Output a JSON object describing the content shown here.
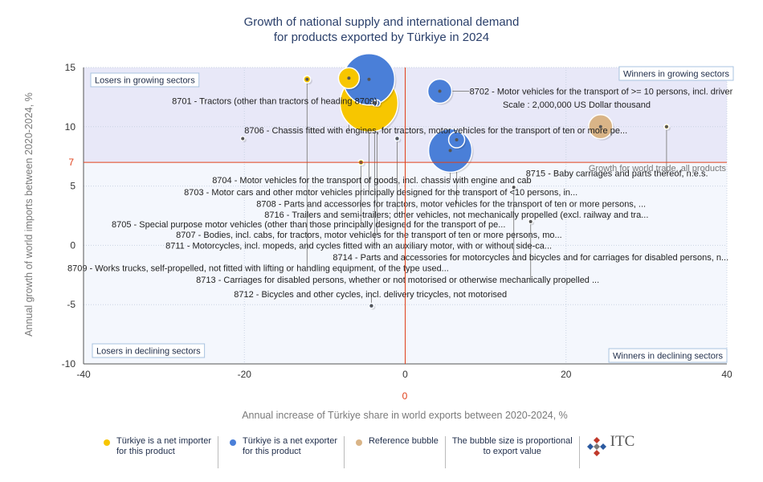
{
  "colors": {
    "importer": "#f7c600",
    "exporter": "#4a7fd8",
    "reference": "#d9b487",
    "upper_band": "#e8e8f8",
    "lower_band": "#f4f7fd",
    "crosshair": "#e0401a",
    "title": "#2a3f6a"
  },
  "chart_data": {
    "type": "scatter",
    "title_lines": [
      "Growth of national supply and international demand",
      "for products exported by Türkiye in 2024"
    ],
    "xlabel": "Annual increase of Türkiye share in world exports between 2020-2024, %",
    "ylabel": "Annual growth of world imports between 2020-2024, %",
    "xlim": [
      -40,
      40
    ],
    "ylim": [
      -10,
      15
    ],
    "xticks": [
      -40,
      -20,
      0,
      20,
      40
    ],
    "yticks": [
      -10,
      -5,
      0,
      5,
      10,
      15
    ],
    "x_ref_label": "0",
    "y_ref_label": "7",
    "y_ref": 7,
    "world_trade_label": "Growth for world trade, all products",
    "scale_label": "Scale : 2,000,000 US Dollar thousand",
    "quadrants": {
      "top_left": "Losers in growing sectors",
      "top_right": "Winners in growing sectors",
      "bottom_left": "Losers in declining sectors",
      "bottom_right": "Winners in declining sectors"
    },
    "points": [
      {
        "code": "8701",
        "label": "8701 - Tractors (other than tractors of heading 8709)",
        "x": -4.5,
        "y": 12.0,
        "r": 36,
        "type": "importer",
        "lx": -29,
        "ly": 12.2
      },
      {
        "code": "8702",
        "label": "8702 - Motor vehicles for the transport of >= 10 persons, incl. driver",
        "x": 4.3,
        "y": 13.0,
        "r": 15,
        "type": "exporter",
        "lx": 8,
        "ly": 13.0
      },
      {
        "code": "8703",
        "label": "8703 - Motor cars and other motor vehicles principally designed for the transport of <10 persons, in...",
        "x": -4.5,
        "y": 14.0,
        "r": 32,
        "type": "exporter",
        "lx": -27.5,
        "ly": 4.5
      },
      {
        "code": "8704",
        "label": "8704 - Motor vehicles for the transport of goods, incl. chassis with engine and cab",
        "x": 5.6,
        "y": 8.0,
        "r": 27,
        "type": "exporter",
        "lx": -24,
        "ly": 5.5
      },
      {
        "code": "8705",
        "label": "8705 - Special purpose motor vehicles (other than those principally designed for the transport of pe...",
        "x": -5.5,
        "y": 7.0,
        "r": 3.5,
        "type": "importer",
        "lx": -36.5,
        "ly": 1.8
      },
      {
        "code": "8706",
        "label": "8706 - Chassis fitted with engines, for tractors, motor vehicles for the transport of ten or more pe...",
        "x": -7.0,
        "y": 14.1,
        "r": 13,
        "type": "importer",
        "lx": -20,
        "ly": 9.7
      },
      {
        "code": "8707",
        "label": "8707 - Bodies, incl. cabs, for tractors, motor vehicles for the transport of ten or more persons, mo...",
        "x": -3.5,
        "y": 12.0,
        "r": 4,
        "type": "exporter",
        "lx": -28.5,
        "ly": 0.9
      },
      {
        "code": "8708",
        "label": "8708 - Parts and accessories for tractors, motor vehicles for the transport of ten or more persons, ...",
        "x": 6.4,
        "y": 8.9,
        "r": 10,
        "type": "exporter",
        "lx": -18.5,
        "ly": 3.5
      },
      {
        "code": "8709",
        "label": "8709 - Works trucks, self-propelled, not fitted with lifting or handling equipment, of the type used...",
        "x": -12.2,
        "y": 14.0,
        "r": 4.5,
        "type": "importer",
        "lx": -42,
        "ly": -1.9
      },
      {
        "code": "8711",
        "label": "8711 - Motorcycles, incl. mopeds, and cycles fitted with an auxiliary motor, with or without side-ca...",
        "x": -3.8,
        "y": 12.0,
        "r": 3.5,
        "type": "exporter",
        "lx": -29.8,
        "ly": 0.0
      },
      {
        "code": "8712",
        "label": "8712 - Bicycles and other cycles, incl. delivery tricycles, not motorised",
        "x": -4.2,
        "y": -5.1,
        "r": 3,
        "type": "exporter",
        "lx": -21.3,
        "ly": -4.1
      },
      {
        "code": "8713",
        "label": "8713 - Carriages for disabled persons, whether or not motorised or otherwise mechanically propelled ...",
        "x": 15.6,
        "y": 2.0,
        "r": 2.5,
        "type": "importer",
        "lx": -26,
        "ly": -2.9
      },
      {
        "code": "8714",
        "label": "8714 - Parts and accessories for motorcycles and bicycles and for carriages for disabled persons, n...",
        "x": 13.5,
        "y": 4.9,
        "r": 2.5,
        "type": "exporter",
        "lx": -9,
        "ly": -1.0
      },
      {
        "code": "8715",
        "label": "8715 - Baby carriages and parts thereof, n.e.s.",
        "x": 32.5,
        "y": 10.0,
        "r": 3,
        "type": "importer",
        "lx": 15,
        "ly": 6.1
      },
      {
        "code": "8716",
        "label": "8716 - Trailers and semi-trailers; other vehicles, not mechanically propelled (excl. railway and tra...",
        "x": -1.0,
        "y": 9.0,
        "r": 3,
        "type": "exporter",
        "lx": -17.5,
        "ly": 2.6
      },
      {
        "code": "ref",
        "label": "",
        "x": 24.3,
        "y": 10.0,
        "r": 15,
        "type": "reference"
      },
      {
        "code": "minor",
        "label": "",
        "x": -20.2,
        "y": 9.0,
        "r": 2.5,
        "type": "importer"
      }
    ]
  },
  "legend": {
    "importer_text": "Türkiye is a net importer\nfor this product",
    "exporter_text": "Türkiye is a net exporter\nfor this product",
    "reference_text": "Reference bubble",
    "size_text": "The bubble size is proportional\nto export value",
    "logo_text": "ITC"
  }
}
